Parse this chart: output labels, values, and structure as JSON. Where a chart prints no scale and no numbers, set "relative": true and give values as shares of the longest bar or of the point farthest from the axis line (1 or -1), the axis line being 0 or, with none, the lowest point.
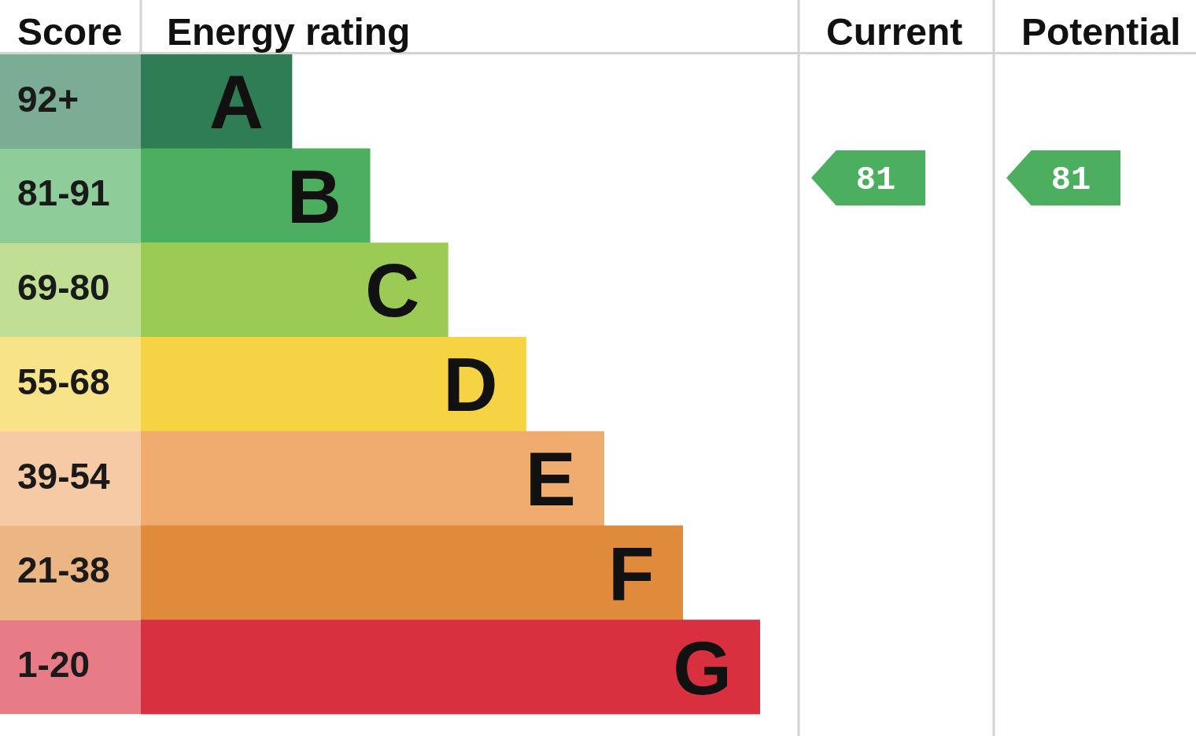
{
  "chart_data": {
    "type": "bar",
    "orientation": "horizontal",
    "relative": true,
    "categories": [
      "92+",
      "81-91",
      "69-80",
      "55-68",
      "39-54",
      "21-38",
      "1-20"
    ],
    "values": [
      0.244,
      0.37,
      0.496,
      0.622,
      0.748,
      0.875,
      1
    ],
    "colors": [
      "#2e7d55",
      "#4caf5f",
      "#9bcb55",
      "#f5d342",
      "#f0ab6f",
      "#e08a3c",
      "#d9303f"
    ],
    "ylabel": "Score",
    "xlabel": "Energy rating",
    "annotations": [
      {
        "text": "A",
        "x": 0.244,
        "y": "92+"
      },
      {
        "text": "B",
        "x": 0.37,
        "y": "81-91"
      },
      {
        "text": "C",
        "x": 0.496,
        "y": "69-80"
      },
      {
        "text": "D",
        "x": 0.622,
        "y": "55-68"
      },
      {
        "text": "E",
        "x": 0.748,
        "y": "39-54"
      },
      {
        "text": "F",
        "x": 0.875,
        "y": "21-38"
      },
      {
        "text": "G",
        "x": 1,
        "y": "1-20"
      },
      "Current",
      "Potential",
      "81",
      "81"
    ]
  }
}
